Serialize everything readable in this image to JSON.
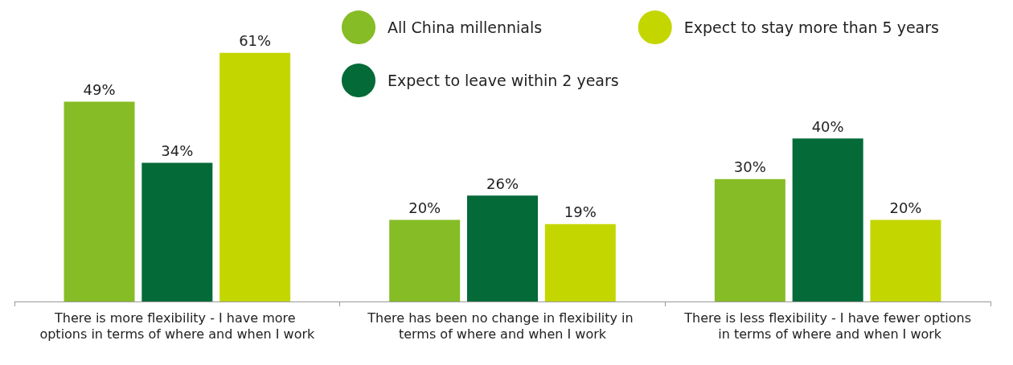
{
  "chart_data": {
    "type": "bar",
    "categories": [
      "There is more flexibility - I have more options in terms of where and when I work",
      "There has been no change in flexibility in terms of where and when I work",
      "There is less flexibility - I have fewer options in terms of where and when I work"
    ],
    "series": [
      {
        "name": "All China millennials",
        "color": "#86bc25",
        "values": [
          49,
          20,
          30
        ],
        "value_labels": [
          "49%",
          "20%",
          "30%"
        ]
      },
      {
        "name": "Expect to leave within 2 years",
        "color": "#046a38",
        "values": [
          34,
          26,
          40
        ],
        "value_labels": [
          "34%",
          "26%",
          "40%"
        ]
      },
      {
        "name": "Expect to stay more than 5 years",
        "color": "#c4d600",
        "values": [
          61,
          19,
          20
        ],
        "value_labels": [
          "61%",
          "19%",
          "20%"
        ]
      }
    ],
    "legend": "top",
    "grid": false
  }
}
